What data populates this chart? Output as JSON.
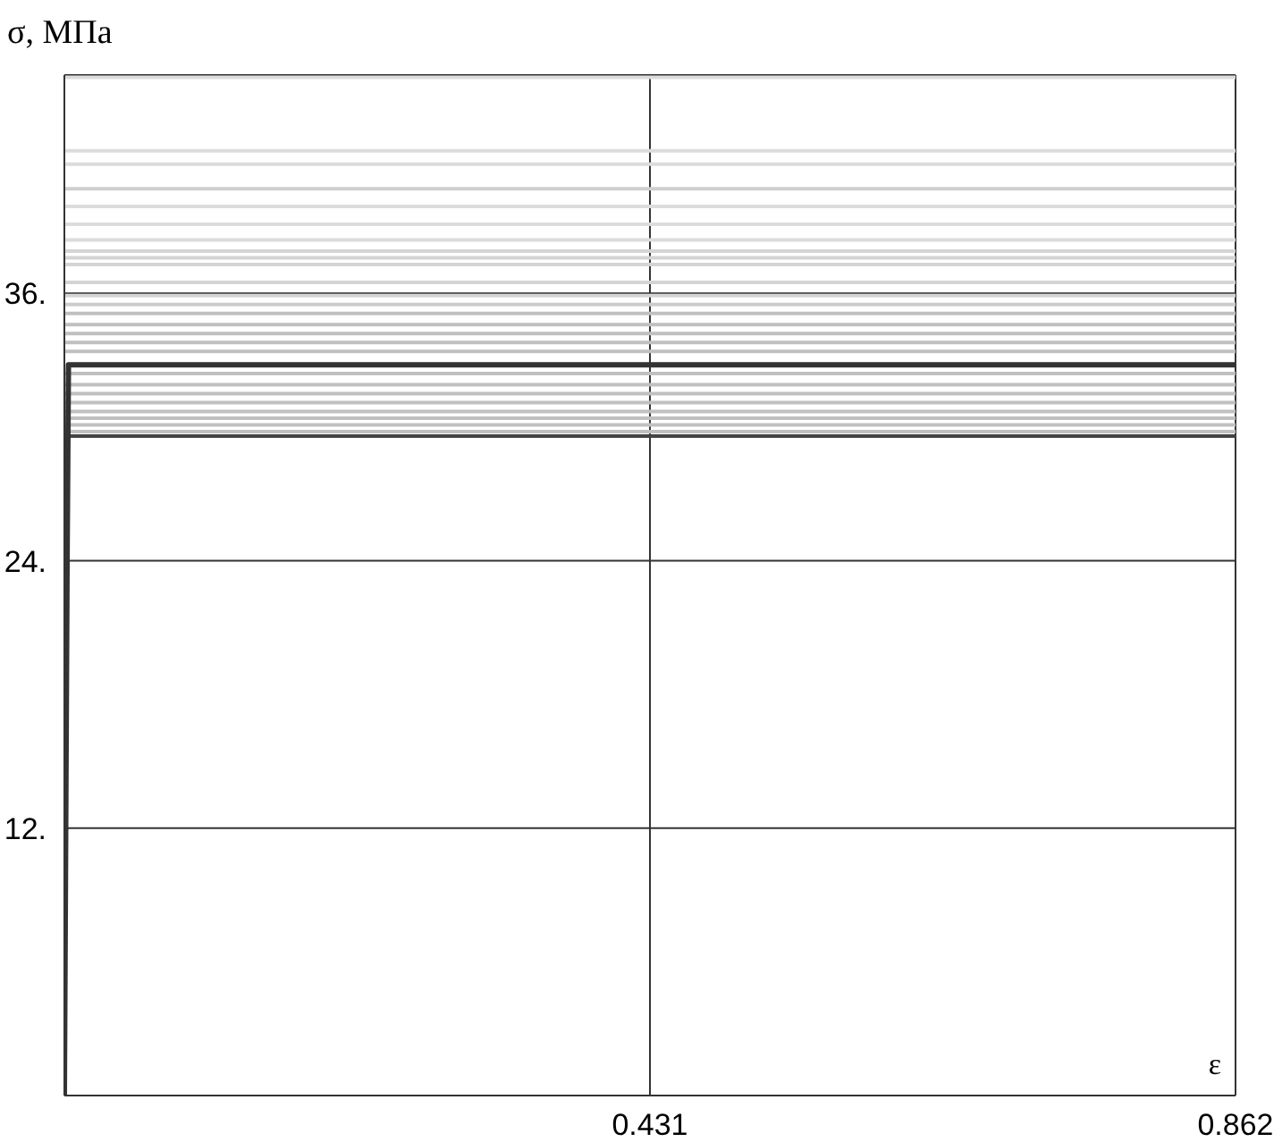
{
  "chart_data": {
    "type": "line",
    "xlabel": "ε",
    "ylabel": "σ,  МПа",
    "x": [
      0,
      0.862
    ],
    "xlim": [
      0,
      0.862
    ],
    "ylim": [
      0,
      45.8
    ],
    "xticks": [
      0.431,
      0.862
    ],
    "yticks": [
      {
        "value": 12,
        "label": "12."
      },
      {
        "value": 24,
        "label": "24."
      },
      {
        "value": 36,
        "label": "36."
      }
    ],
    "grid": true,
    "marker": "none",
    "series": [
      {
        "color": "#dcdcdc",
        "values": [
          45.7,
          45.7
        ]
      },
      {
        "color": "#dcdcdc",
        "values": [
          42.4,
          42.4
        ]
      },
      {
        "color": "#dcdcdc",
        "values": [
          41.8,
          41.8
        ]
      },
      {
        "color": "#cfcfcf",
        "values": [
          40.7,
          40.7
        ]
      },
      {
        "color": "#dcdcdc",
        "values": [
          39.9,
          39.9
        ]
      },
      {
        "color": "#dcdcdc",
        "values": [
          39.1,
          39.1
        ]
      },
      {
        "color": "#dcdcdc",
        "values": [
          38.4,
          38.4
        ]
      },
      {
        "color": "#d4d4d4",
        "values": [
          37.9,
          37.9
        ]
      },
      {
        "color": "#d4d4d4",
        "values": [
          37.6,
          37.6
        ]
      },
      {
        "color": "#d4d4d4",
        "values": [
          37.3,
          37.3
        ]
      },
      {
        "color": "#d4d4d4",
        "values": [
          36.5,
          36.5
        ]
      },
      {
        "color": "#d4d4d4",
        "values": [
          35.9,
          35.9
        ]
      },
      {
        "color": "#cccccc",
        "values": [
          35.5,
          35.5
        ]
      },
      {
        "color": "#c0c0c0",
        "values": [
          35.1,
          35.1
        ]
      },
      {
        "color": "#c0c0c0",
        "values": [
          34.6,
          34.6
        ]
      },
      {
        "color": "#c0c0c0",
        "values": [
          34.2,
          34.2
        ]
      },
      {
        "color": "#c0c0c0",
        "values": [
          33.8,
          33.8
        ]
      },
      {
        "color": "#c0c0c0",
        "values": [
          33.4,
          33.4
        ]
      },
      {
        "color": "#c0c0c0",
        "values": [
          32.4,
          32.4
        ]
      },
      {
        "color": "#c0c0c0",
        "values": [
          31.9,
          31.9
        ]
      },
      {
        "color": "#c0c0c0",
        "values": [
          31.5,
          31.5
        ]
      },
      {
        "color": "#c0c0c0",
        "values": [
          31.1,
          31.1
        ]
      },
      {
        "color": "#c0c0c0",
        "values": [
          30.7,
          30.7
        ]
      },
      {
        "color": "#c0c0c0",
        "values": [
          30.4,
          30.4
        ]
      },
      {
        "color": "#c0c0c0",
        "values": [
          30.1,
          30.1
        ]
      },
      {
        "color": "#c0c0c0",
        "values": [
          29.8,
          29.8
        ]
      },
      {
        "color": "#444444",
        "values": [
          29.6,
          29.6
        ]
      },
      {
        "color": "#333333",
        "x": [
          0,
          0.001,
          0.002,
          0.003,
          0.862
        ],
        "values": [
          0,
          12,
          24,
          32.8,
          32.8
        ]
      }
    ]
  }
}
